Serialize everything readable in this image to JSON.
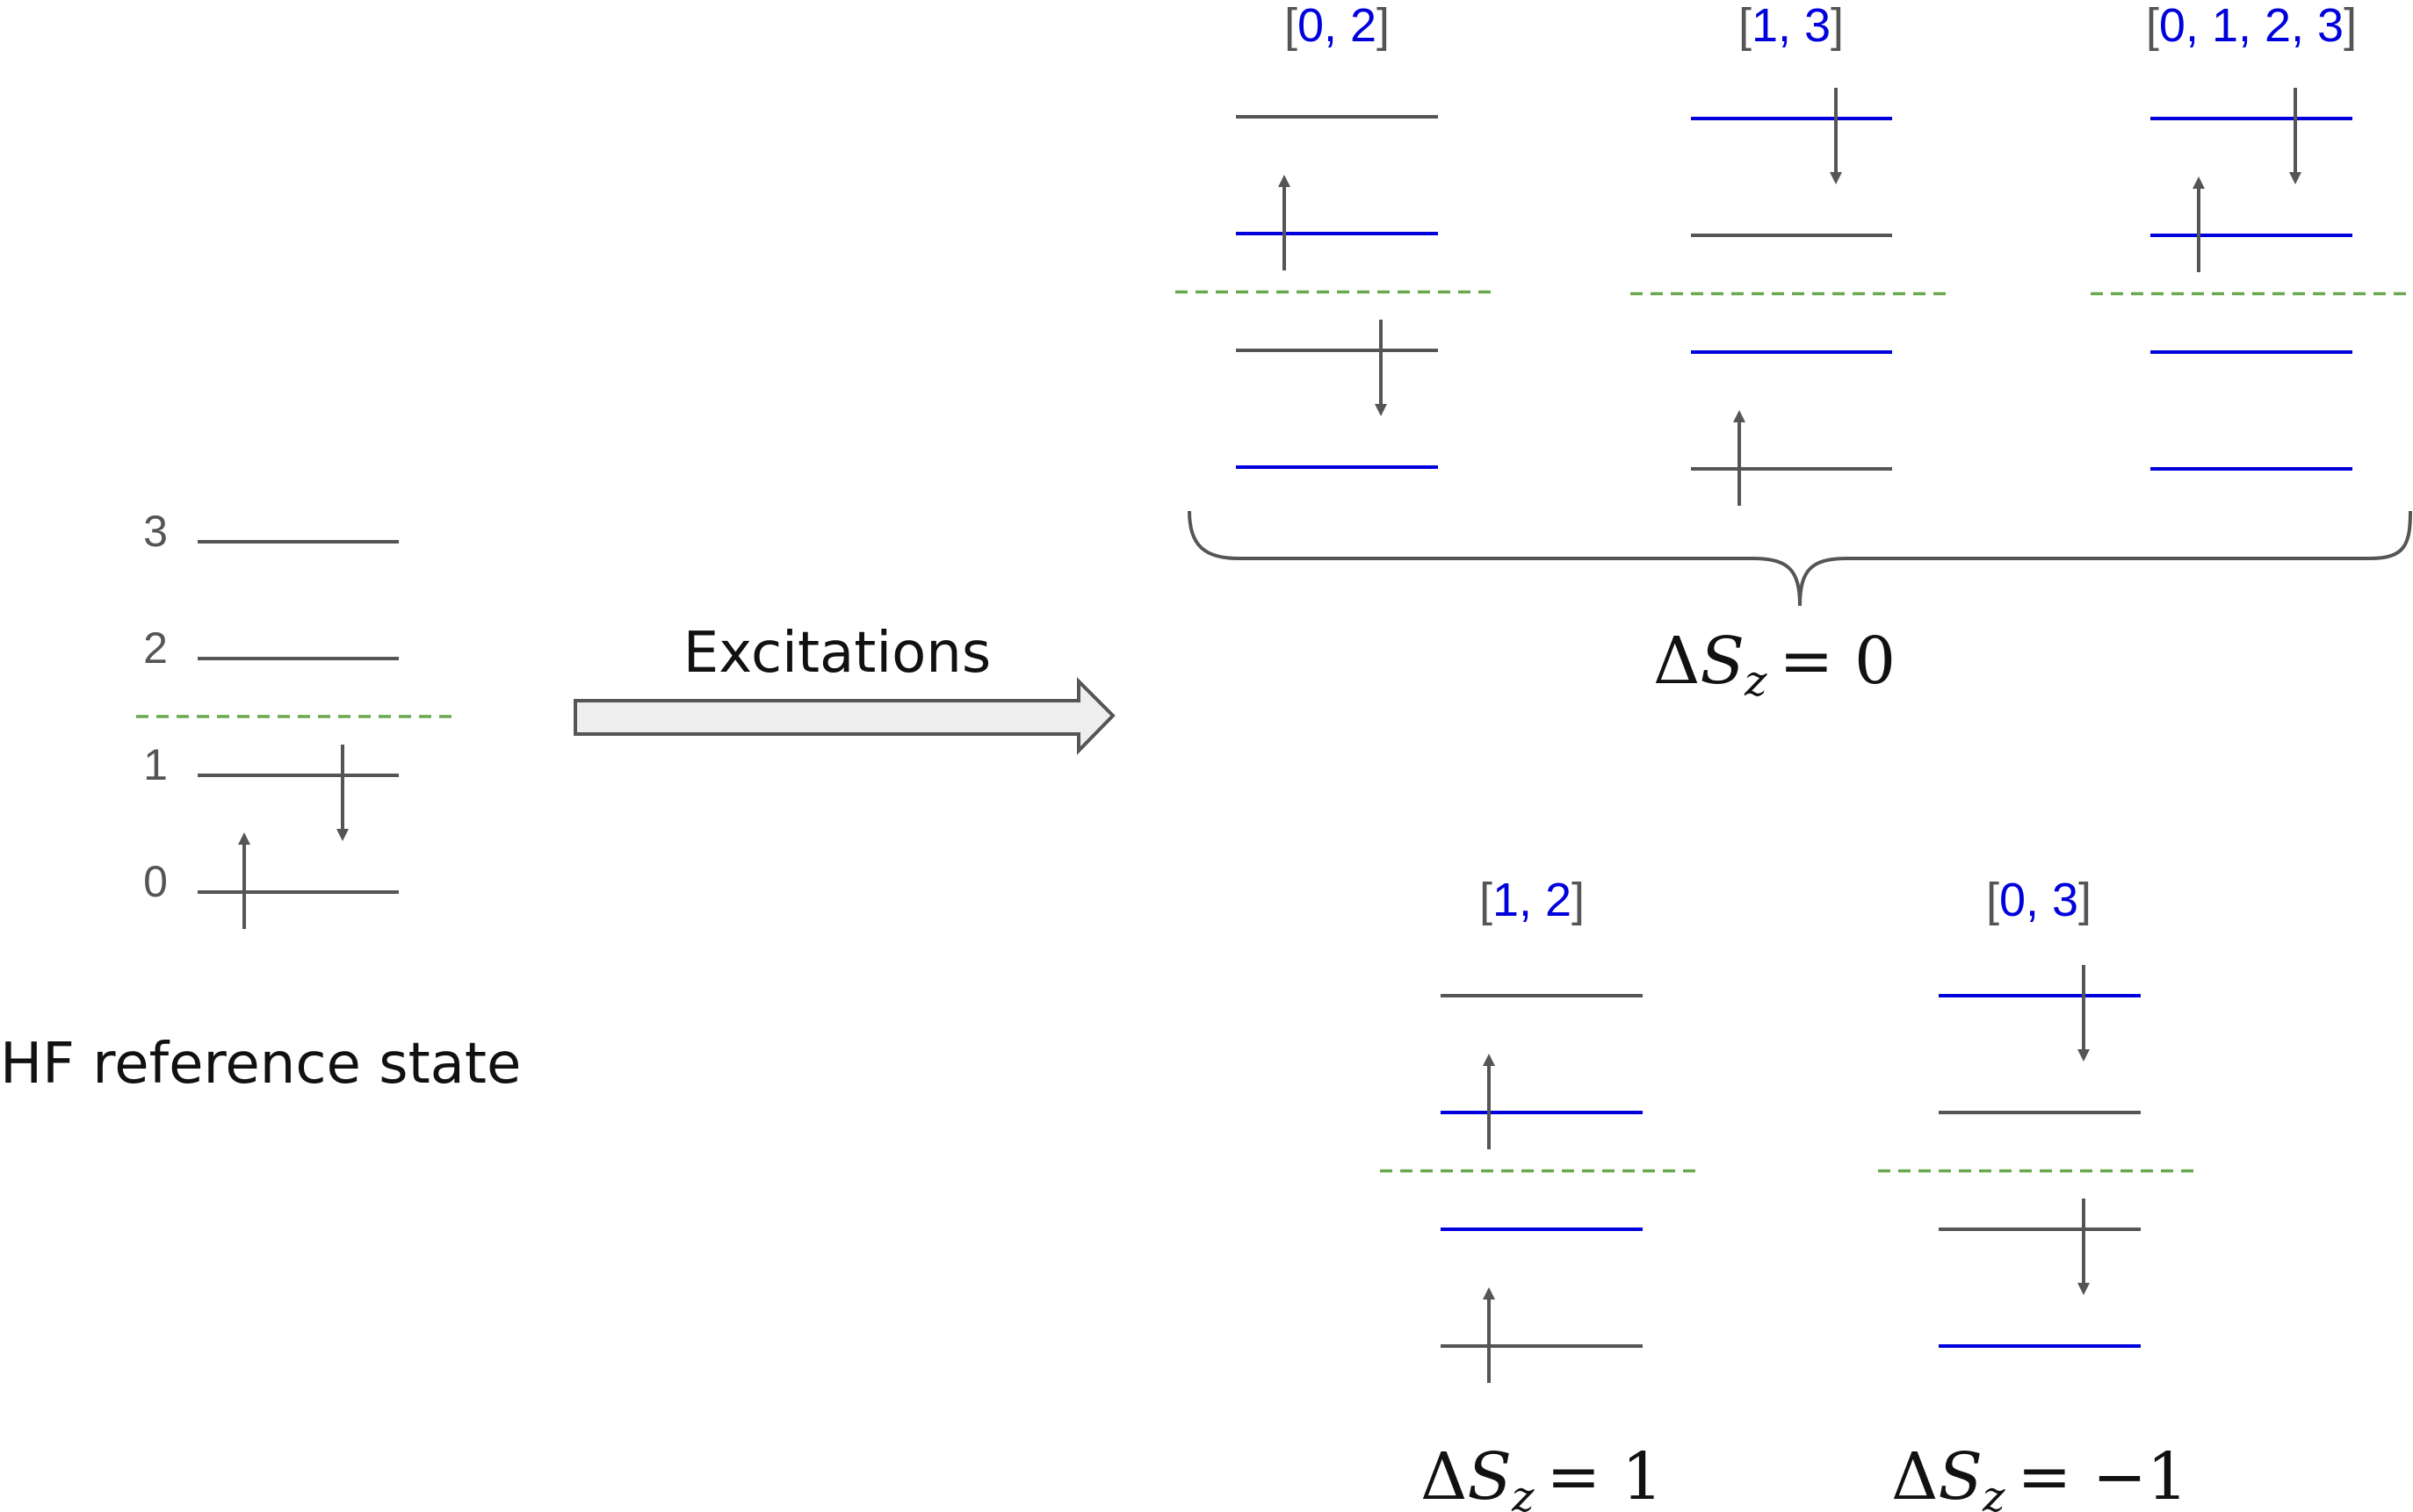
{
  "reference": {
    "caption": "HF reference state",
    "level_labels": [
      "0",
      "1",
      "2",
      "3"
    ]
  },
  "arrow_label": "Excitations",
  "groups": {
    "delta_sz_0": {
      "delta": "Δ",
      "s": "S",
      "sub": "z",
      "rhs": "= 0"
    },
    "delta_sz_1": {
      "delta": "Δ",
      "s": "S",
      "sub": "z",
      "rhs": "= 1"
    },
    "delta_sz_m1": {
      "delta": "Δ",
      "s": "S",
      "sub": "z",
      "rhs": "= −1"
    }
  },
  "configurations": [
    {
      "indices": [
        "0",
        "2"
      ],
      "excited": [
        0,
        2
      ],
      "up": [
        2
      ],
      "down": [
        1
      ]
    },
    {
      "indices": [
        "1",
        "3"
      ],
      "excited": [
        1,
        3
      ],
      "up": [
        0
      ],
      "down": [
        3
      ]
    },
    {
      "indices": [
        "0",
        "1",
        "2",
        "3"
      ],
      "excited": [
        0,
        1,
        2,
        3
      ],
      "up": [
        2
      ],
      "down": [
        3
      ]
    },
    {
      "indices": [
        "1",
        "2"
      ],
      "excited": [
        1,
        2
      ],
      "up": [
        0,
        2
      ],
      "down": []
    },
    {
      "indices": [
        "0",
        "3"
      ],
      "excited": [
        0,
        3
      ],
      "up": [],
      "down": [
        1,
        3
      ]
    }
  ],
  "colors": {
    "level_default": "#555555",
    "level_excited": "#0000dd",
    "fermi_line": "#6aa84f",
    "bracket_default": "#555555",
    "index_blue": "#0000dd",
    "arrow_fill": "#eeeeee",
    "arrow_stroke": "#555555"
  }
}
